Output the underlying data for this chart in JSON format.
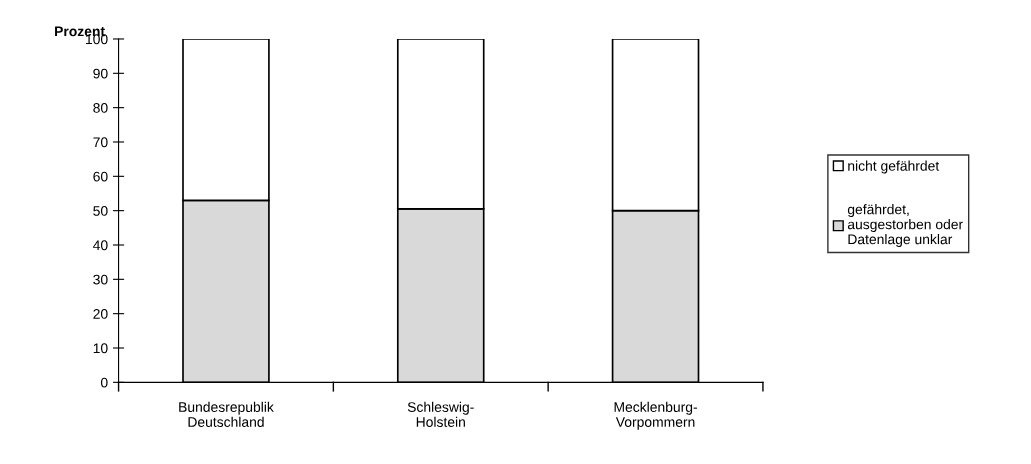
{
  "chart_data": {
    "type": "bar",
    "stacked": true,
    "ylabel": "Prozent",
    "categories": [
      "Bundesrepublik\nDeutschland",
      "Schleswig-\nHolstein",
      "Mecklenburg-\nVorpommern"
    ],
    "series": [
      {
        "name": "gefährdet,\nausgestorben oder\nDatenlage unklar",
        "color": "#d9d9d9",
        "values": [
          53,
          50.5,
          50
        ]
      },
      {
        "name": "nicht gefährdet",
        "color": "#ffffff",
        "values": [
          47,
          49.5,
          50
        ]
      }
    ],
    "ylim": [
      0,
      100
    ],
    "yticks": [
      0,
      10,
      20,
      30,
      40,
      50,
      60,
      70,
      80,
      90,
      100
    ],
    "grid": false,
    "legend": "right"
  }
}
